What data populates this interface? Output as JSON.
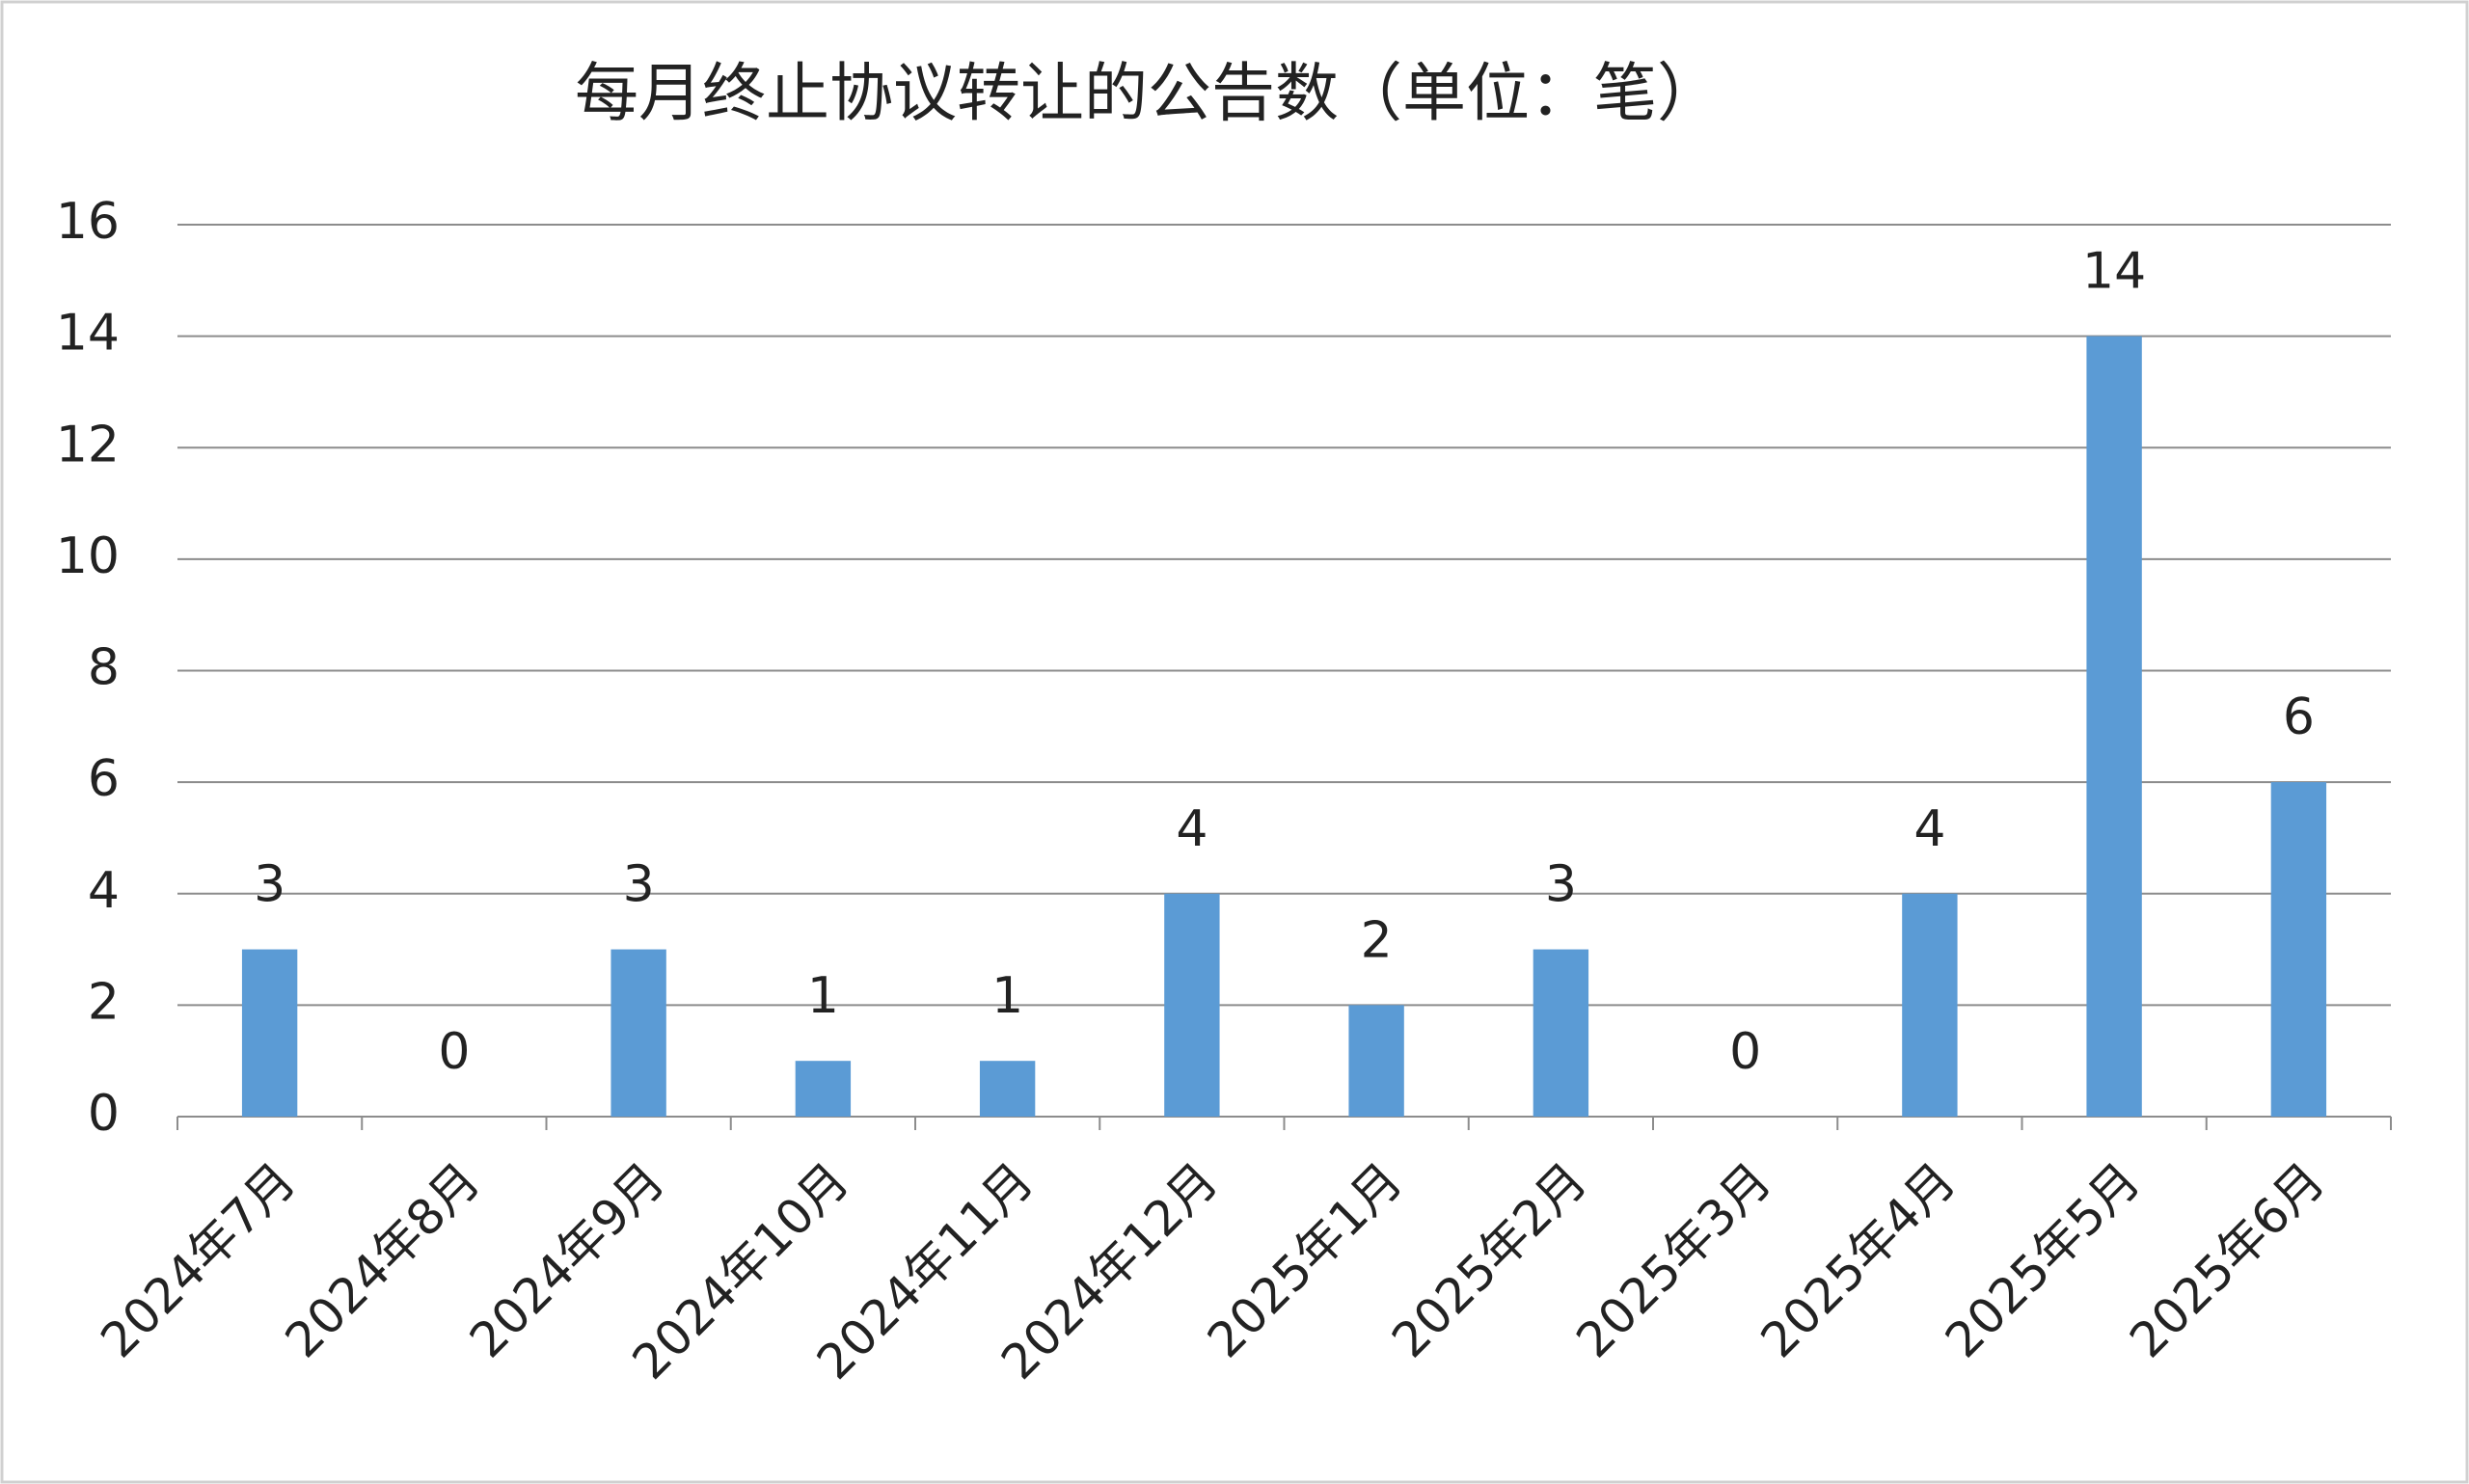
{
  "chart_data": {
    "type": "bar",
    "title": "每月终止协议转让的公告数（单位：笔）",
    "categories": [
      "2024年7月",
      "2024年8月",
      "2024年9月",
      "2024年10月",
      "2024年11月",
      "2024年12月",
      "2025年1月",
      "2025年2月",
      "2025年3月",
      "2025年4月",
      "2025年5月",
      "2025年6月"
    ],
    "values": [
      3,
      0,
      3,
      1,
      1,
      4,
      2,
      3,
      0,
      4,
      14,
      6
    ],
    "color": "#5b9bd5",
    "ylim": [
      0,
      16
    ],
    "yticks": [
      0,
      2,
      4,
      6,
      8,
      10,
      12,
      14,
      16
    ],
    "grid": true
  }
}
